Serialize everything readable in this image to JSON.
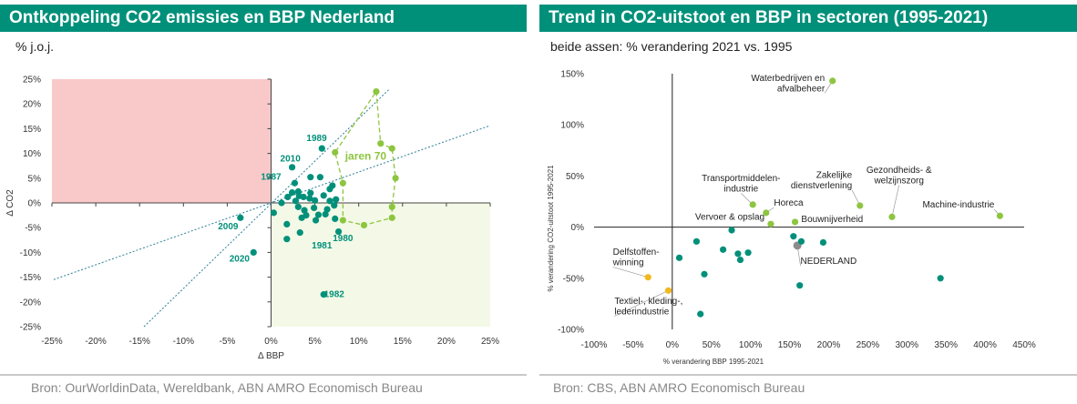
{
  "left": {
    "title": "Ontkoppeling CO2 emissies en BBP Nederland",
    "subtitle": "% j.o.j.",
    "source": "Bron: OurWorldinData, Wereldbank, ABN AMRO Economisch Bureau"
  },
  "right": {
    "title": "Trend in CO2-uitstoot en BBP in sectoren (1995-2021)",
    "subtitle": "beide assen: % verandering 2021 vs. 1995",
    "source": "Bron: CBS, ABN AMRO Economisch Bureau"
  },
  "colors": {
    "teal": "#00907a",
    "green": "#8ec540",
    "grey": "#8c8c8c",
    "yellow": "#f2b81d",
    "pink": "#f9c9c9",
    "lightgreen": "#f3f9e6",
    "trend": "#2c7f9a"
  },
  "chart_data": [
    {
      "type": "scatter",
      "title": "Ontkoppeling CO2 emissies en BBP Nederland",
      "xlabel": "Δ BBP",
      "ylabel": "Δ CO2",
      "xlim": [
        -25,
        25
      ],
      "ylim": [
        -25,
        25
      ],
      "xticks": [
        "-25%",
        "-20%",
        "-15%",
        "-10%",
        "-5%",
        "0%",
        "5%",
        "10%",
        "15%",
        "20%",
        "25%"
      ],
      "yticks": [
        "25%",
        "20%",
        "15%",
        "10%",
        "5%",
        "0%",
        "-5%",
        "-10%",
        "-15%",
        "-20%",
        "-25%"
      ],
      "shaded_regions": [
        {
          "name": "pink-quadrant",
          "x": [
            -25,
            0
          ],
          "y": [
            0,
            25
          ]
        },
        {
          "name": "green-quadrant",
          "x": [
            0,
            25
          ],
          "y": [
            -25,
            0
          ]
        }
      ],
      "trendlines": [
        {
          "name": "trend-steep",
          "points": [
            [
              -14.5,
              -25
            ],
            [
              13.5,
              23
            ]
          ]
        },
        {
          "name": "trend-flat",
          "points": [
            [
              -24.8,
              -15.5
            ],
            [
              24.8,
              15.5
            ]
          ]
        }
      ],
      "series": [
        {
          "name": "teal",
          "points": [
            [
              0.3,
              -2
            ],
            [
              1.2,
              0
            ],
            [
              1.8,
              -4.3
            ],
            [
              1.8,
              -7.3
            ],
            [
              1.9,
              1.2
            ],
            [
              2.4,
              7.2
            ],
            [
              2.4,
              2.1
            ],
            [
              2.7,
              4
            ],
            [
              2.8,
              0.4
            ],
            [
              3.1,
              -0.8
            ],
            [
              3.1,
              2.3
            ],
            [
              3.2,
              1.4
            ],
            [
              3.3,
              -6
            ],
            [
              3.5,
              -3
            ],
            [
              3.7,
              1.2
            ],
            [
              3.8,
              -1.5
            ],
            [
              4,
              -2.5
            ],
            [
              4.4,
              0.9
            ],
            [
              4.5,
              2
            ],
            [
              4.5,
              5.2
            ],
            [
              4.9,
              -1
            ],
            [
              5,
              0.5
            ],
            [
              5.1,
              -3.5
            ],
            [
              5.4,
              -2.4
            ],
            [
              5.6,
              5.2
            ],
            [
              5.8,
              11
            ],
            [
              6,
              1.5
            ],
            [
              6.2,
              -2.3
            ],
            [
              6.4,
              -1.3
            ],
            [
              6.7,
              0.4
            ],
            [
              6.7,
              2.8
            ],
            [
              7,
              3.5
            ],
            [
              7.2,
              -0.5
            ],
            [
              7.3,
              -3.2
            ],
            [
              7.4,
              0.7
            ],
            [
              7.7,
              -5.8
            ],
            [
              6,
              -18.5
            ],
            [
              -3.5,
              -3
            ],
            [
              -2,
              -10
            ]
          ]
        },
        {
          "name": "green",
          "points": [
            [
              12,
              22.5
            ],
            [
              12.5,
              12
            ],
            [
              13.8,
              11
            ],
            [
              14.2,
              5
            ],
            [
              13.8,
              -0.8
            ],
            [
              13.8,
              -3
            ],
            [
              10.6,
              -4.5
            ],
            [
              8.2,
              -3.5
            ],
            [
              8.2,
              4
            ],
            [
              7.3,
              10.2
            ]
          ]
        }
      ],
      "path_jaren70": [
        [
          12,
          22.5
        ],
        [
          12.5,
          12
        ],
        [
          13.8,
          11
        ],
        [
          14.2,
          5
        ],
        [
          13.8,
          -0.8
        ],
        [
          13.8,
          -3
        ],
        [
          10.6,
          -4.5
        ],
        [
          8.2,
          -3.5
        ],
        [
          8.2,
          4
        ],
        [
          7.3,
          10.2
        ],
        [
          12,
          22.5
        ]
      ],
      "annotations": [
        {
          "text": "1989",
          "x": 5.2,
          "y": 12.5,
          "color": "teal"
        },
        {
          "text": "2010",
          "x": 2.2,
          "y": 8.4,
          "color": "teal"
        },
        {
          "text": "1987",
          "x": 0,
          "y": 4.7,
          "color": "teal"
        },
        {
          "text": "2009",
          "x": -4.9,
          "y": -5.3,
          "color": "teal"
        },
        {
          "text": "2020",
          "x": -3.6,
          "y": -11.9,
          "color": "teal"
        },
        {
          "text": "1981",
          "x": 5.8,
          "y": -9.2,
          "color": "teal"
        },
        {
          "text": "1980",
          "x": 8.2,
          "y": -7.7,
          "color": "teal"
        },
        {
          "text": "1982",
          "x": 7.2,
          "y": -19,
          "color": "teal"
        },
        {
          "text": "jaren 70",
          "x": 10.8,
          "y": 8.7,
          "color": "green"
        }
      ]
    },
    {
      "type": "scatter",
      "title": "Trend in CO2-uitstoot en BBP in sectoren (1995-2021)",
      "xlabel": "% verandering BBP 1995-2021",
      "ylabel": "% verandering CO2-uitstoot 1995-2021",
      "xlim": [
        -100,
        450
      ],
      "ylim": [
        -100,
        150
      ],
      "xticks": [
        "-100%",
        "-50%",
        "0%",
        "50%",
        "100%",
        "150%",
        "200%",
        "250%",
        "300%",
        "350%",
        "400%",
        "450%"
      ],
      "yticks": [
        "150%",
        "100%",
        "50%",
        "0%",
        "-50%",
        "-100%"
      ],
      "points": [
        {
          "name": "Waterbedrijven en afvalbeheer",
          "x": 205,
          "y": 143,
          "color": "green"
        },
        {
          "name": "Transportmiddelen-industrie",
          "x": 103,
          "y": 22,
          "color": "green"
        },
        {
          "name": "Horeca",
          "x": 120,
          "y": 14,
          "color": "green"
        },
        {
          "name": "Vervoer & opslag",
          "x": 126,
          "y": 3,
          "color": "green"
        },
        {
          "name": "Bouwnijverheid",
          "x": 157,
          "y": 5,
          "color": "green"
        },
        {
          "name": "Zakelijke dienstverlening",
          "x": 240,
          "y": 21,
          "color": "green"
        },
        {
          "name": "Gezondheids- & welzijnszorg",
          "x": 281,
          "y": 10,
          "color": "green"
        },
        {
          "name": "Machine-industrie",
          "x": 419,
          "y": 11,
          "color": "green"
        },
        {
          "name": "NEDERLAND",
          "x": 160,
          "y": -18,
          "color": "grey"
        },
        {
          "name": "Delfstoffenwinning",
          "x": -31,
          "y": -49,
          "color": "yellow"
        },
        {
          "name": "Textiel-, kleding-, lederindustrie",
          "x": -5,
          "y": -62,
          "color": "yellow"
        },
        {
          "name": "teal-1",
          "x": 9,
          "y": -30,
          "color": "teal"
        },
        {
          "name": "teal-2",
          "x": 31,
          "y": -14,
          "color": "teal"
        },
        {
          "name": "teal-3",
          "x": 36,
          "y": -85,
          "color": "teal"
        },
        {
          "name": "teal-4",
          "x": 41,
          "y": -46,
          "color": "teal"
        },
        {
          "name": "teal-5",
          "x": 65,
          "y": -22,
          "color": "teal"
        },
        {
          "name": "teal-6",
          "x": 76,
          "y": -3,
          "color": "teal"
        },
        {
          "name": "teal-7",
          "x": 84,
          "y": -26,
          "color": "teal"
        },
        {
          "name": "teal-8",
          "x": 87,
          "y": -32,
          "color": "teal"
        },
        {
          "name": "teal-9",
          "x": 97,
          "y": -25,
          "color": "teal"
        },
        {
          "name": "teal-10",
          "x": 155,
          "y": -9,
          "color": "teal"
        },
        {
          "name": "teal-11",
          "x": 165,
          "y": -14,
          "color": "teal"
        },
        {
          "name": "teal-12",
          "x": 163,
          "y": -57,
          "color": "teal"
        },
        {
          "name": "teal-13",
          "x": 193,
          "y": -15,
          "color": "teal"
        },
        {
          "name": "teal-14",
          "x": 343,
          "y": -50,
          "color": "teal"
        }
      ],
      "labels": [
        {
          "lines": [
            "Waterbedrijven en",
            "afvalbeheer"
          ],
          "x": 195,
          "y": 143,
          "align": "end",
          "leader": true
        },
        {
          "lines": [
            "Transportmiddelen-",
            "industrie"
          ],
          "x": 88,
          "y": 45,
          "align": "middle",
          "leader": true
        },
        {
          "lines": [
            "Horeca"
          ],
          "x": 130,
          "y": 21,
          "align": "start",
          "leader": true
        },
        {
          "lines": [
            "Vervoer & opslag"
          ],
          "x": 118,
          "y": 7,
          "align": "end",
          "leader": false
        },
        {
          "lines": [
            "Bouwnijverheid"
          ],
          "x": 165,
          "y": 5,
          "align": "start",
          "leader": false
        },
        {
          "lines": [
            "Zakelijke",
            "dienstverlening"
          ],
          "x": 230,
          "y": 48,
          "align": "end",
          "leader": true
        },
        {
          "lines": [
            "Gezondheids- &",
            "welzijnszorg"
          ],
          "x": 290,
          "y": 53,
          "align": "middle",
          "leader": true
        },
        {
          "lines": [
            "Machine-industrie"
          ],
          "x": 412,
          "y": 19,
          "align": "end",
          "leader": true
        },
        {
          "lines": [
            "NEDERLAND"
          ],
          "x": 164,
          "y": -36,
          "align": "start",
          "leader": true
        },
        {
          "lines": [
            "Delfstoffen-",
            "winning"
          ],
          "x": -76,
          "y": -27,
          "align": "start",
          "leader": true
        },
        {
          "lines": [
            "Textiel-, kleding-,",
            "lederindustrie"
          ],
          "x": -74,
          "y": -75,
          "align": "start",
          "leader": true
        }
      ]
    }
  ]
}
